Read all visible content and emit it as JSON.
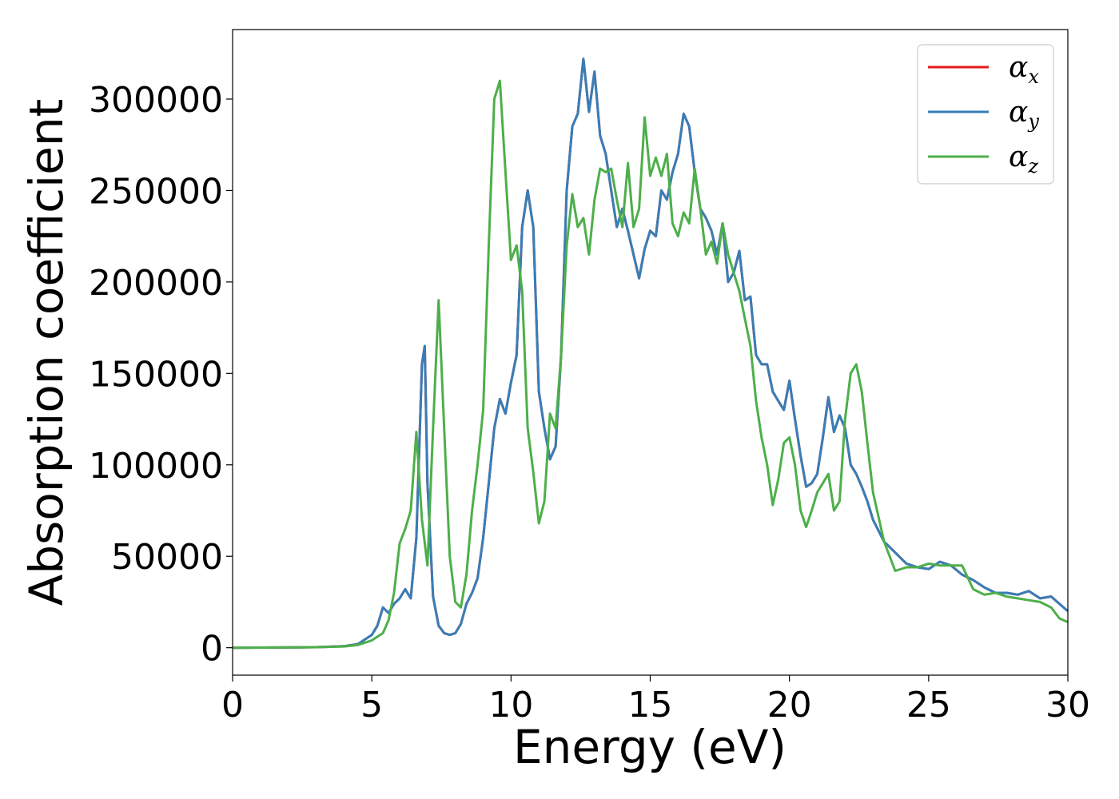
{
  "chart_data": {
    "type": "line",
    "title": "",
    "xlabel": "Energy (eV)",
    "ylabel": "Absorption coefficient",
    "xlim": [
      0,
      30
    ],
    "ylim": [
      -15000,
      338000
    ],
    "xticks": [
      0,
      5,
      10,
      15,
      20,
      25,
      30
    ],
    "yticks": [
      0,
      50000,
      100000,
      150000,
      200000,
      250000,
      300000
    ],
    "grid": false,
    "legend_position": "top-right",
    "series": [
      {
        "name": "α_x",
        "legend_symbol": "α",
        "legend_subscript": "x",
        "color": "#e41a1c",
        "x": [
          0,
          3,
          4,
          4.5,
          4.8,
          5,
          5.2,
          5.4,
          5.6,
          5.8,
          6,
          6.2,
          6.4,
          6.6,
          6.8,
          6.9,
          7.0,
          7.2,
          7.4,
          7.6,
          7.8,
          8.0,
          8.2,
          8.4,
          8.6,
          8.8,
          9.0,
          9.2,
          9.4,
          9.6,
          9.8,
          10.0,
          10.2,
          10.4,
          10.6,
          10.8,
          11.0,
          11.2,
          11.4,
          11.6,
          11.8,
          12.0,
          12.2,
          12.4,
          12.6,
          12.8,
          13.0,
          13.2,
          13.4,
          13.6,
          13.8,
          14.0,
          14.2,
          14.4,
          14.6,
          14.8,
          15.0,
          15.2,
          15.4,
          15.6,
          15.8,
          16.0,
          16.2,
          16.4,
          16.6,
          16.8,
          17.0,
          17.2,
          17.4,
          17.6,
          17.8,
          18.0,
          18.2,
          18.4,
          18.6,
          18.8,
          19.0,
          19.2,
          19.4,
          19.6,
          19.8,
          20.0,
          20.2,
          20.4,
          20.6,
          20.8,
          21.0,
          21.2,
          21.4,
          21.6,
          21.8,
          22.0,
          22.2,
          22.4,
          22.6,
          22.8,
          23.0,
          23.4,
          23.8,
          24.2,
          24.6,
          25.0,
          25.4,
          25.8,
          26.2,
          26.6,
          27.0,
          27.4,
          27.8,
          28.2,
          28.6,
          29.0,
          29.4,
          29.7,
          30.0
        ],
        "y": [
          0,
          300,
          800,
          2000,
          5000,
          7000,
          12000,
          22000,
          19000,
          24000,
          27000,
          32000,
          27000,
          60000,
          155000,
          165000,
          90000,
          28000,
          12000,
          8000,
          7000,
          8000,
          13000,
          24000,
          30000,
          38000,
          60000,
          90000,
          120000,
          136000,
          128000,
          145000,
          160000,
          230000,
          250000,
          230000,
          140000,
          120000,
          103000,
          110000,
          160000,
          250000,
          285000,
          292000,
          322000,
          293000,
          315000,
          280000,
          270000,
          250000,
          230000,
          240000,
          228000,
          215000,
          202000,
          218000,
          228000,
          225000,
          250000,
          245000,
          260000,
          270000,
          292000,
          285000,
          260000,
          240000,
          235000,
          228000,
          215000,
          232000,
          200000,
          205000,
          217000,
          190000,
          192000,
          160000,
          155000,
          155000,
          140000,
          135000,
          130000,
          146000,
          125000,
          105000,
          88000,
          90000,
          95000,
          115000,
          137000,
          118000,
          127000,
          120000,
          100000,
          95000,
          88000,
          80000,
          70000,
          58000,
          52000,
          46000,
          44000,
          43000,
          47000,
          45000,
          40000,
          37000,
          33000,
          30000,
          30000,
          29000,
          31000,
          27000,
          28000,
          24000,
          20000
        ]
      },
      {
        "name": "α_y",
        "legend_symbol": "α",
        "legend_subscript": "y",
        "color": "#377eb8",
        "x": [
          0,
          3,
          4,
          4.5,
          4.8,
          5,
          5.2,
          5.4,
          5.6,
          5.8,
          6,
          6.2,
          6.4,
          6.6,
          6.8,
          6.9,
          7.0,
          7.2,
          7.4,
          7.6,
          7.8,
          8.0,
          8.2,
          8.4,
          8.6,
          8.8,
          9.0,
          9.2,
          9.4,
          9.6,
          9.8,
          10.0,
          10.2,
          10.4,
          10.6,
          10.8,
          11.0,
          11.2,
          11.4,
          11.6,
          11.8,
          12.0,
          12.2,
          12.4,
          12.6,
          12.8,
          13.0,
          13.2,
          13.4,
          13.6,
          13.8,
          14.0,
          14.2,
          14.4,
          14.6,
          14.8,
          15.0,
          15.2,
          15.4,
          15.6,
          15.8,
          16.0,
          16.2,
          16.4,
          16.6,
          16.8,
          17.0,
          17.2,
          17.4,
          17.6,
          17.8,
          18.0,
          18.2,
          18.4,
          18.6,
          18.8,
          19.0,
          19.2,
          19.4,
          19.6,
          19.8,
          20.0,
          20.2,
          20.4,
          20.6,
          20.8,
          21.0,
          21.2,
          21.4,
          21.6,
          21.8,
          22.0,
          22.2,
          22.4,
          22.6,
          22.8,
          23.0,
          23.4,
          23.8,
          24.2,
          24.6,
          25.0,
          25.4,
          25.8,
          26.2,
          26.6,
          27.0,
          27.4,
          27.8,
          28.2,
          28.6,
          29.0,
          29.4,
          29.7,
          30.0
        ],
        "y": [
          0,
          300,
          800,
          2000,
          5000,
          7000,
          12000,
          22000,
          19000,
          24000,
          27000,
          32000,
          27000,
          60000,
          155000,
          165000,
          90000,
          28000,
          12000,
          8000,
          7000,
          8000,
          13000,
          24000,
          30000,
          38000,
          60000,
          90000,
          120000,
          136000,
          128000,
          145000,
          160000,
          230000,
          250000,
          230000,
          140000,
          120000,
          103000,
          110000,
          160000,
          250000,
          285000,
          292000,
          322000,
          293000,
          315000,
          280000,
          270000,
          250000,
          230000,
          240000,
          228000,
          215000,
          202000,
          218000,
          228000,
          225000,
          250000,
          245000,
          260000,
          270000,
          292000,
          285000,
          260000,
          240000,
          235000,
          228000,
          215000,
          232000,
          200000,
          205000,
          217000,
          190000,
          192000,
          160000,
          155000,
          155000,
          140000,
          135000,
          130000,
          146000,
          125000,
          105000,
          88000,
          90000,
          95000,
          115000,
          137000,
          118000,
          127000,
          120000,
          100000,
          95000,
          88000,
          80000,
          70000,
          58000,
          52000,
          46000,
          44000,
          43000,
          47000,
          45000,
          40000,
          37000,
          33000,
          30000,
          30000,
          29000,
          31000,
          27000,
          28000,
          24000,
          20000
        ]
      },
      {
        "name": "α_z",
        "legend_symbol": "α",
        "legend_subscript": "z",
        "color": "#4daf4a",
        "x": [
          0,
          3,
          4,
          4.5,
          4.8,
          5,
          5.2,
          5.4,
          5.6,
          5.8,
          6.0,
          6.2,
          6.4,
          6.6,
          6.8,
          7.0,
          7.2,
          7.4,
          7.6,
          7.8,
          8.0,
          8.2,
          8.4,
          8.6,
          8.8,
          9.0,
          9.2,
          9.4,
          9.6,
          9.8,
          10.0,
          10.2,
          10.4,
          10.6,
          10.8,
          11.0,
          11.2,
          11.4,
          11.6,
          11.8,
          12.0,
          12.2,
          12.4,
          12.6,
          12.8,
          13.0,
          13.2,
          13.4,
          13.6,
          13.8,
          14.0,
          14.2,
          14.4,
          14.6,
          14.8,
          15.0,
          15.2,
          15.4,
          15.6,
          15.8,
          16.0,
          16.2,
          16.4,
          16.6,
          16.8,
          17.0,
          17.2,
          17.4,
          17.6,
          17.8,
          18.0,
          18.2,
          18.4,
          18.6,
          18.8,
          19.0,
          19.2,
          19.4,
          19.6,
          19.8,
          20.0,
          20.2,
          20.4,
          20.6,
          20.8,
          21.0,
          21.2,
          21.4,
          21.6,
          21.8,
          22.0,
          22.2,
          22.4,
          22.6,
          22.8,
          23.0,
          23.4,
          23.8,
          24.2,
          24.6,
          25.0,
          25.4,
          25.8,
          26.2,
          26.6,
          27.0,
          27.4,
          27.8,
          28.2,
          28.6,
          29.0,
          29.4,
          29.7,
          30.0
        ],
        "y": [
          0,
          300,
          700,
          1500,
          3000,
          4000,
          6000,
          8000,
          15000,
          30000,
          57000,
          65000,
          75000,
          118000,
          70000,
          45000,
          120000,
          190000,
          120000,
          50000,
          25000,
          22000,
          40000,
          75000,
          100000,
          130000,
          220000,
          300000,
          310000,
          260000,
          212000,
          220000,
          195000,
          120000,
          96000,
          68000,
          80000,
          128000,
          120000,
          160000,
          220000,
          248000,
          230000,
          235000,
          215000,
          245000,
          262000,
          260000,
          262000,
          245000,
          230000,
          265000,
          230000,
          240000,
          290000,
          258000,
          268000,
          258000,
          270000,
          232000,
          225000,
          238000,
          232000,
          262000,
          240000,
          215000,
          222000,
          210000,
          232000,
          215000,
          205000,
          195000,
          180000,
          165000,
          135000,
          115000,
          100000,
          78000,
          92000,
          112000,
          115000,
          100000,
          75000,
          66000,
          75000,
          85000,
          90000,
          95000,
          75000,
          80000,
          125000,
          150000,
          155000,
          140000,
          112000,
          85000,
          58000,
          42000,
          44000,
          44000,
          46000,
          45000,
          45000,
          45000,
          32000,
          29000,
          30000,
          28000,
          27000,
          26000,
          25000,
          22000,
          16000,
          14000
        ]
      }
    ]
  }
}
